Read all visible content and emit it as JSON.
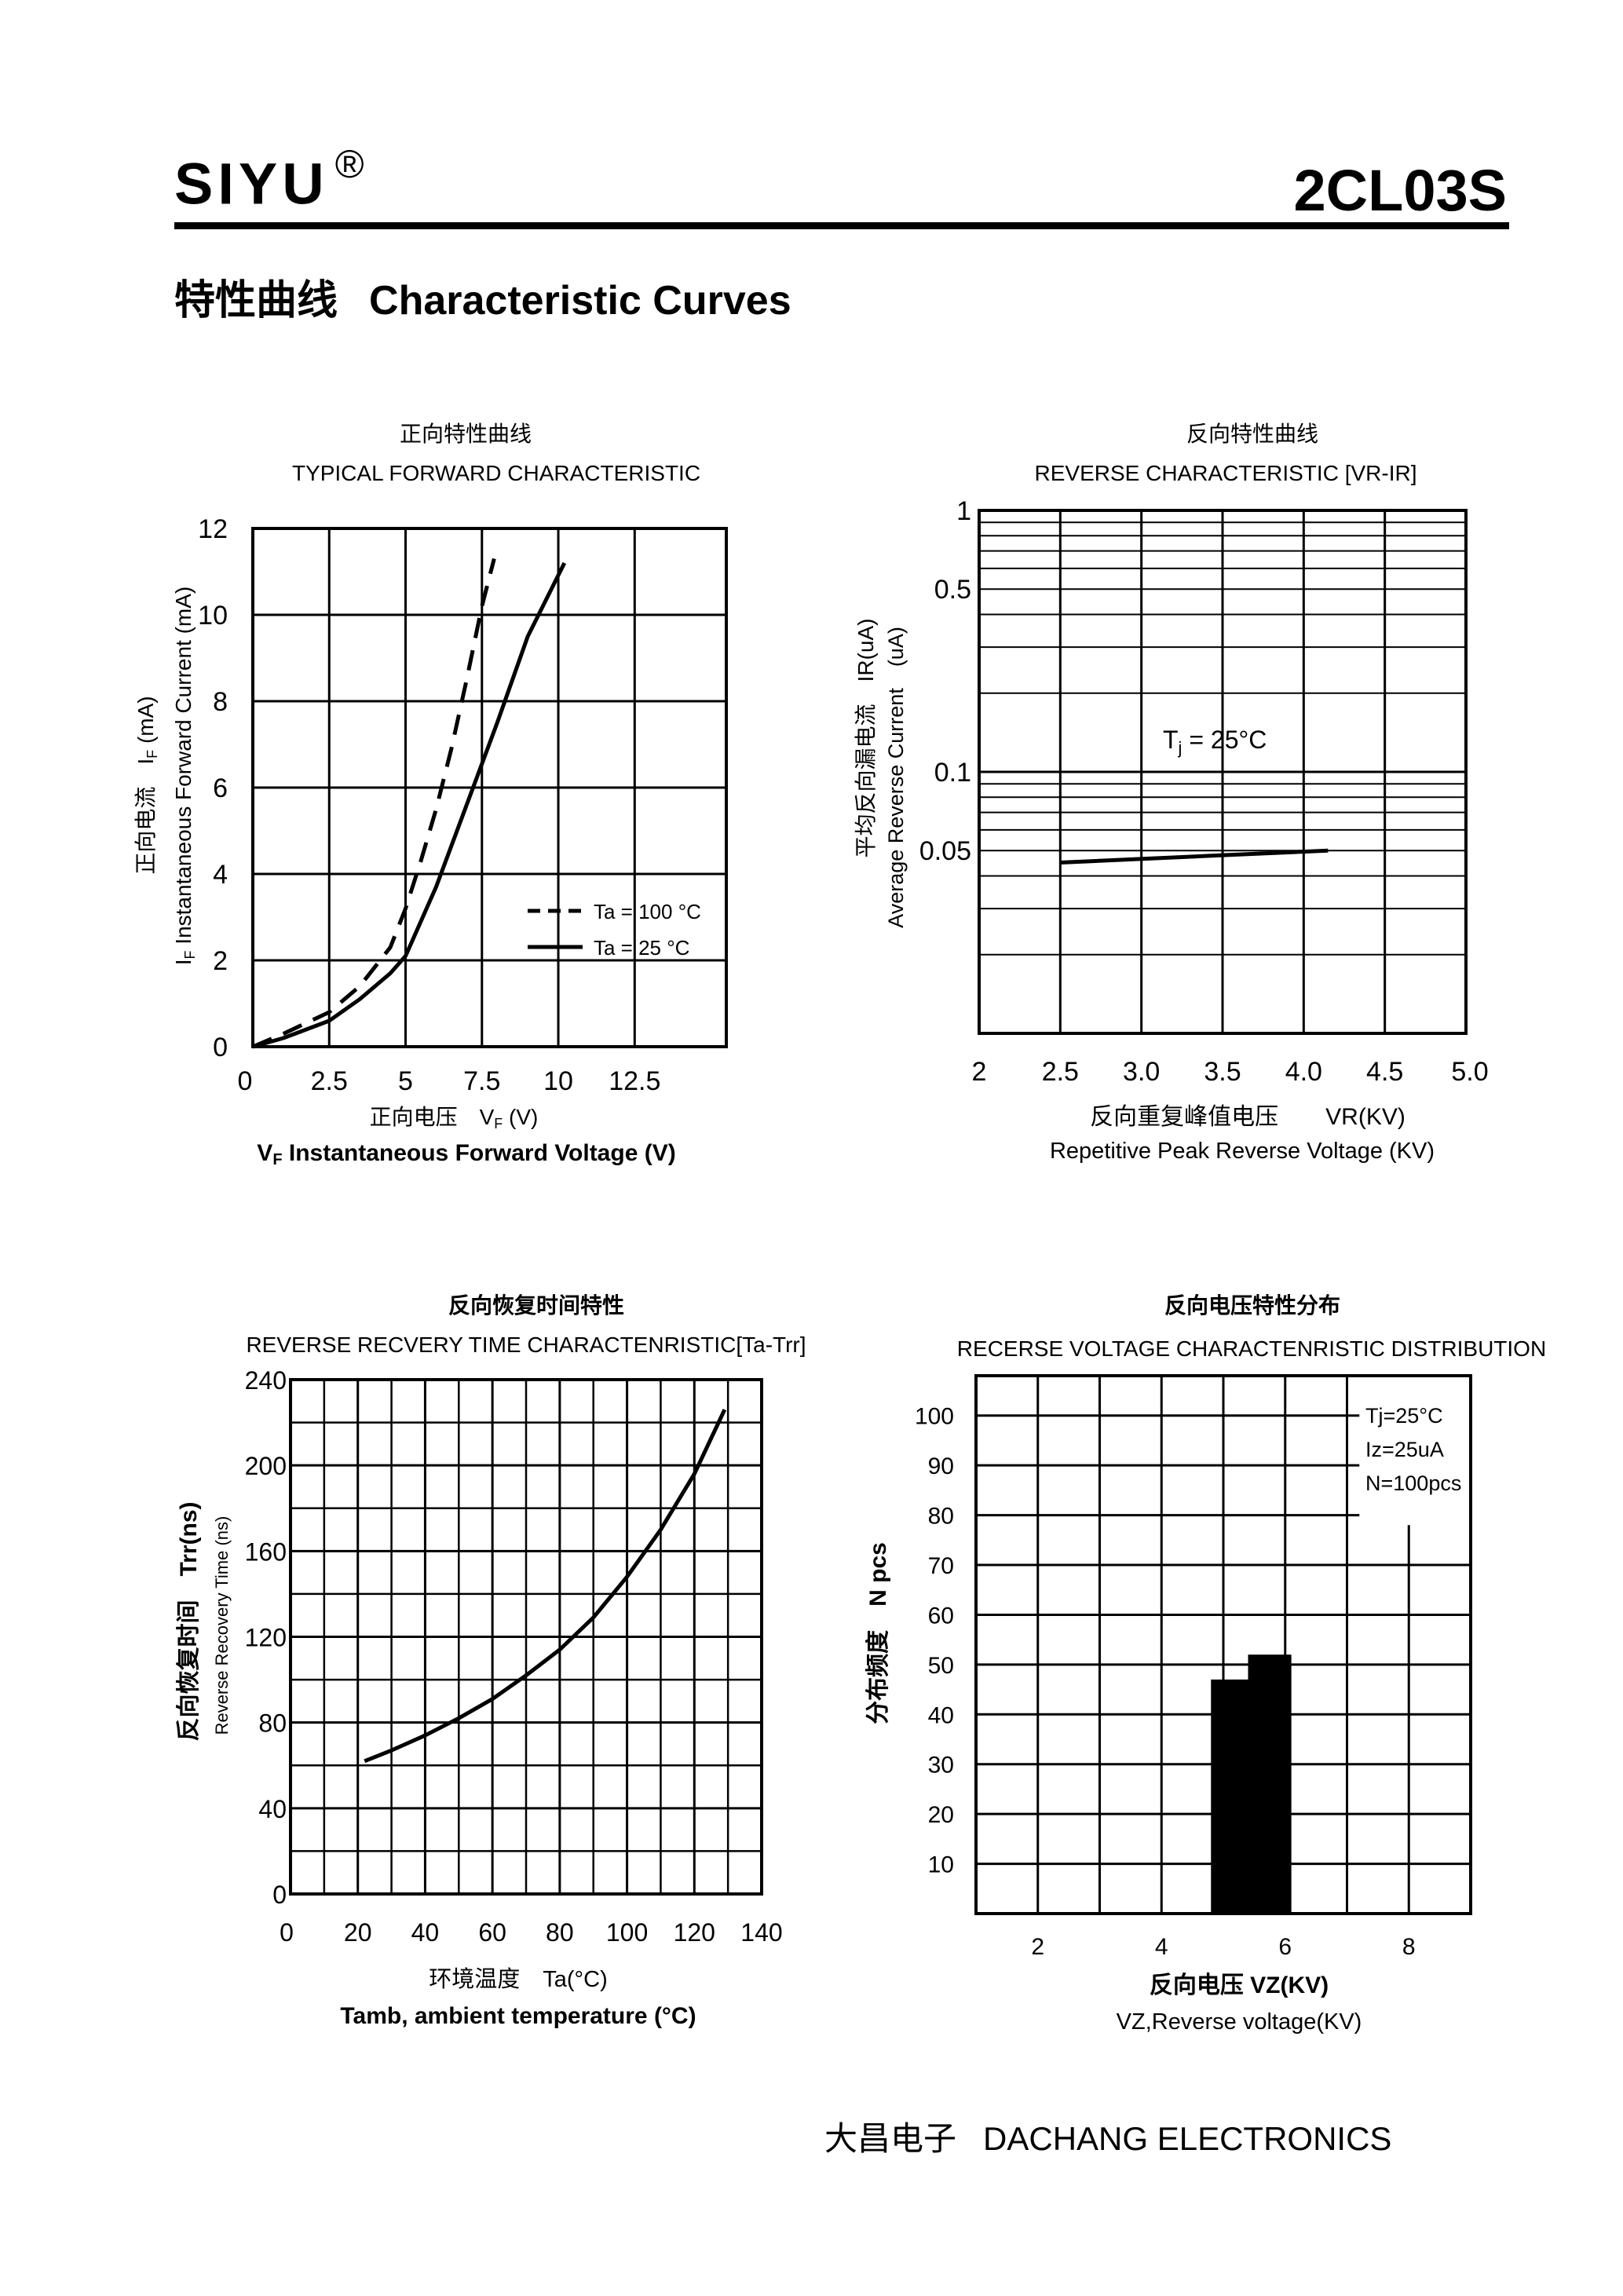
{
  "header": {
    "brand": "SIYU",
    "registered_mark": "®",
    "part_number": "2CL03S",
    "section_title_cn": "特性曲线",
    "section_title_en": "Characteristic Curves"
  },
  "footer": {
    "company_cn": "大昌电子",
    "company_en": "DACHANG ELECTRONICS"
  },
  "chart_data": [
    {
      "id": "forward",
      "type": "line",
      "title_cn": "正向特性曲线",
      "title": "TYPICAL FORWARD CHARACTERISTIC",
      "xlabel_cn": "正向电压　V",
      "xlabel_cn_sub": "F",
      "xlabel_cn_unit": " (V)",
      "xlabel_sym": "V",
      "xlabel_sym_sub": "F",
      "xlabel": " Instantaneous Forward Voltage (V)",
      "ylabel_cn": "正向电流　I",
      "ylabel_cn_sub": "F",
      "ylabel_cn_unit": " (mA)",
      "ylabel_sym": "I",
      "ylabel_sym_sub": "F",
      "ylabel": " Instantaneous Forward Current (mA)",
      "xlim": [
        0,
        15.5
      ],
      "ylim": [
        0,
        12
      ],
      "x_ticks": [
        "0",
        "2.5",
        "5",
        "7.5",
        "10",
        "12.5"
      ],
      "x_tick_values": [
        0,
        2.5,
        5,
        7.5,
        10,
        12.5
      ],
      "y_ticks": [
        "0",
        "2",
        "4",
        "6",
        "8",
        "10",
        "12"
      ],
      "y_tick_values": [
        0,
        2,
        4,
        6,
        8,
        10,
        12
      ],
      "grid": true,
      "legend_position": "bottom-right",
      "series": [
        {
          "name": "Ta = 100 °C",
          "style": "dashed",
          "x": [
            0,
            1,
            2.5,
            3.5,
            4.5,
            5,
            5.5,
            6,
            6.5,
            7,
            7.5,
            7.9
          ],
          "y": [
            0,
            0.3,
            0.8,
            1.4,
            2.3,
            3.2,
            4.3,
            5.5,
            6.9,
            8.5,
            10.2,
            11.3
          ]
        },
        {
          "name": "Ta = 25 °C",
          "style": "solid",
          "x": [
            0,
            1,
            2.5,
            3.5,
            4.5,
            5,
            6,
            7,
            8,
            9,
            10.2
          ],
          "y": [
            0,
            0.2,
            0.6,
            1.1,
            1.7,
            2.1,
            3.7,
            5.6,
            7.5,
            9.5,
            11.2
          ]
        }
      ]
    },
    {
      "id": "reverse",
      "type": "line",
      "title_cn": "反向特性曲线",
      "title": "REVERSE CHARACTERISTIC [VR-IR]",
      "xlabel_cn": "反向重复峰值电压　　VR(KV)",
      "xlabel": "Repetitive Peak Reverse Voltage (KV)",
      "ylabel_cn": "平均反向漏电流　IR(uA)",
      "ylabel": "Average Reverse  Current　(uA)",
      "yscale": "log",
      "xlim": [
        2,
        5
      ],
      "ylim": [
        0.01,
        1
      ],
      "x_ticks": [
        "2",
        "2.5",
        "3.0",
        "3.5",
        "4.0",
        "4.5",
        "5.0"
      ],
      "x_tick_values": [
        2,
        2.5,
        3,
        3.5,
        4,
        4.5,
        5
      ],
      "y_ticks": [
        "1",
        "0.5",
        "0.1",
        "0.05"
      ],
      "y_tick_values": [
        1,
        0.5,
        0.1,
        0.05
      ],
      "annotation_pre": "T",
      "annotation_sub": "j",
      "annotation_post": " = 25°C",
      "grid": true,
      "series": [
        {
          "name": "Tj = 25°C",
          "x": [
            2.5,
            3.5,
            4.15
          ],
          "y": [
            0.045,
            0.048,
            0.05
          ]
        }
      ]
    },
    {
      "id": "recovery",
      "type": "line",
      "title_cn": "反向恢复时间特性",
      "title": "REVERSE RECVERY TIME CHARACTENRISTIC[Ta-Trr]",
      "xlabel_cn": "环境温度　Ta(°C)",
      "xlabel": "Tamb, ambient temperature (°C)",
      "ylabel_cn": "反向恢复时间　Trr(ns)",
      "ylabel": "Reverse Recovery Time  (ns)",
      "xlim": [
        0,
        140
      ],
      "ylim": [
        0,
        240
      ],
      "x_ticks": [
        "0",
        "20",
        "40",
        "60",
        "80",
        "100",
        "120",
        "140"
      ],
      "x_tick_values": [
        0,
        20,
        40,
        60,
        80,
        100,
        120,
        140
      ],
      "y_ticks": [
        "0",
        "40",
        "80",
        "120",
        "160",
        "200",
        "240"
      ],
      "y_tick_values": [
        0,
        40,
        80,
        120,
        160,
        200,
        240
      ],
      "grid": true,
      "series": [
        {
          "name": "Trr",
          "x": [
            22,
            30,
            40,
            50,
            60,
            70,
            80,
            90,
            100,
            110,
            120,
            129
          ],
          "y": [
            62,
            67,
            74,
            82,
            91,
            102,
            114,
            129,
            148,
            170,
            196,
            226
          ]
        }
      ]
    },
    {
      "id": "distribution",
      "type": "bar",
      "title_cn": "反向电压特性分布",
      "title": "RECERSE VOLTAGE CHARACTENRISTIC DISTRIBUTION",
      "xlabel_cn": "反向电压  VZ(KV)",
      "xlabel": "VZ,Reverse voltage(KV)",
      "ylabel_cn": "分布频度　N pcs",
      "xlim": [
        1,
        9
      ],
      "ylim": [
        0,
        108
      ],
      "x_ticks": [
        "2",
        "4",
        "6",
        "8"
      ],
      "x_tick_values": [
        2,
        4,
        6,
        8
      ],
      "y_ticks": [
        "10",
        "20",
        "30",
        "40",
        "50",
        "60",
        "70",
        "80",
        "90",
        "100"
      ],
      "y_tick_values": [
        10,
        20,
        30,
        40,
        50,
        60,
        70,
        80,
        90,
        100
      ],
      "notes": [
        "Tj=25°C",
        "Iz=25uA",
        "N=100pcs"
      ],
      "grid": true,
      "bins": [
        {
          "from": 4.8,
          "to": 5.4,
          "value": 47
        },
        {
          "from": 5.4,
          "to": 6.1,
          "value": 52
        }
      ]
    }
  ]
}
